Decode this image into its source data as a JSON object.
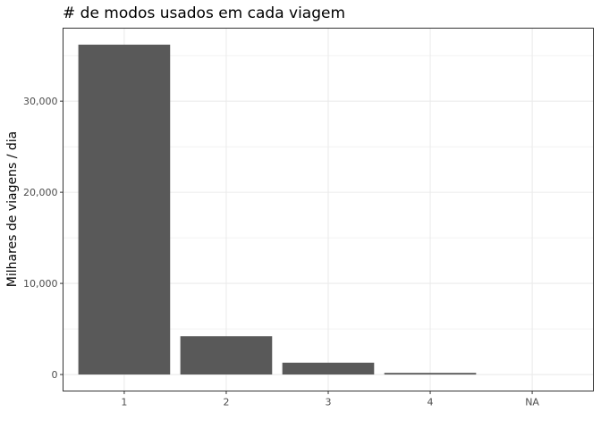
{
  "chart_data": {
    "type": "bar",
    "title": "# de modos usados em cada viagem",
    "xlabel": "",
    "ylabel": "Milhares de viagens / dia",
    "categories": [
      "1",
      "2",
      "3",
      "4",
      "NA"
    ],
    "values": [
      36200,
      4200,
      1300,
      180,
      0
    ],
    "ylim": [
      -1810,
      38010
    ],
    "yticks": [
      0,
      10000,
      20000,
      30000
    ],
    "ytick_labels": [
      "0",
      "10,000",
      "20,000",
      "30,000"
    ],
    "grid": true,
    "legend": "none",
    "bar_color": "#595959",
    "grid_color": "#ebebeb",
    "panel_border_color": "#333333"
  }
}
